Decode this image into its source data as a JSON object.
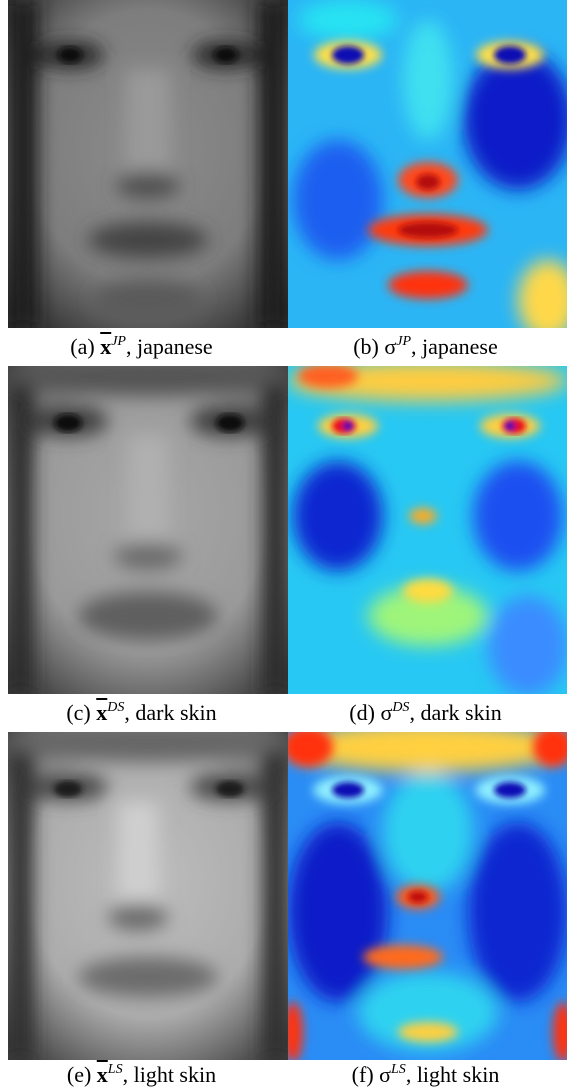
{
  "panels": [
    {
      "id": "a",
      "type": "mean",
      "letter": "(a)",
      "symbol": "x",
      "superscript": "JP",
      "label": ", japanese"
    },
    {
      "id": "b",
      "type": "sigma",
      "letter": "(b)",
      "symbol": "σ",
      "superscript": "JP",
      "label": ", japanese"
    },
    {
      "id": "c",
      "type": "mean",
      "letter": "(c)",
      "symbol": "x",
      "superscript": "DS",
      "label": ", dark skin"
    },
    {
      "id": "d",
      "type": "sigma",
      "letter": "(d)",
      "symbol": "σ",
      "superscript": "DS",
      "label": ", dark skin"
    },
    {
      "id": "e",
      "type": "mean",
      "letter": "(e)",
      "symbol": "x",
      "superscript": "LS",
      "label": ", light skin"
    },
    {
      "id": "f",
      "type": "sigma",
      "letter": "(f)",
      "symbol": "σ",
      "superscript": "LS",
      "label": ", light skin"
    }
  ],
  "colors": {
    "jet_dark_blue": "#0a0ab4",
    "jet_blue": "#1f6fff",
    "jet_cyan": "#27d3f5",
    "jet_yellow": "#ffe54a",
    "jet_red": "#e8101a"
  }
}
